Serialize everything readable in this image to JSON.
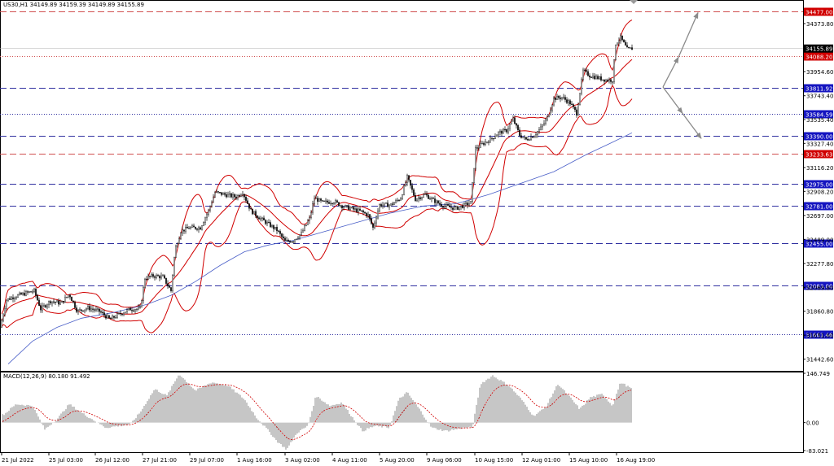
{
  "chart_data": {
    "type": "candlestick",
    "title": "US30,H1  34149.89 34159.39 34149.89 34155.89",
    "current_price": 34155.89,
    "y_ticks": [
      "34373.80",
      "34164.20",
      "33954.60",
      "33743.40",
      "33535.40",
      "33327.40",
      "33116.20",
      "32908.20",
      "32697.00",
      "32489.00",
      "32277.80",
      "32069.80",
      "31860.80",
      "31651.60",
      "31442.60"
    ],
    "x_ticks": [
      "21 Jul 2022",
      "25 Jul 03:00",
      "26 Jul 12:00",
      "27 Jul 21:00",
      "29 Jul 07:00",
      "1 Aug 16:00",
      "3 Aug 02:00",
      "4 Aug 11:00",
      "5 Aug 20:00",
      "9 Aug 06:00",
      "10 Aug 15:00",
      "12 Aug 01:00",
      "15 Aug 10:00",
      "16 Aug 19:00"
    ],
    "price_range": [
      31340,
      34580
    ],
    "levels": [
      {
        "value": 34477.0,
        "label": "34477.00",
        "style": "dashed",
        "color": "#d05050",
        "tag": "#d00000"
      },
      {
        "value": 34088.2,
        "label": "34088.20",
        "style": "dotted",
        "color": "#d05050",
        "tag": "#d00000"
      },
      {
        "value": 33811.92,
        "label": "33811.92",
        "style": "dashed",
        "color": "#3030a0",
        "tag": "#1414c0"
      },
      {
        "value": 33584.59,
        "label": "33584.59",
        "style": "dotted",
        "color": "#3030a0",
        "tag": "#1414c0"
      },
      {
        "value": 33390.0,
        "label": "33390.00",
        "style": "dashed",
        "color": "#3030a0",
        "tag": "#1414c0"
      },
      {
        "value": 33233.63,
        "label": "33233.63",
        "style": "dashed",
        "color": "#d05050",
        "tag": "#d00000"
      },
      {
        "value": 32975.0,
        "label": "32975.00",
        "style": "dashed",
        "color": "#3030a0",
        "tag": "#1414c0"
      },
      {
        "value": 32781.0,
        "label": "32781.00",
        "style": "dashed",
        "color": "#3030a0",
        "tag": "#1414c0"
      },
      {
        "value": 32455.0,
        "label": "32455.00",
        "style": "dashed",
        "color": "#3030a0",
        "tag": "#1414c0"
      },
      {
        "value": 32083.0,
        "label": "32083.00",
        "style": "dashed",
        "color": "#3030a0",
        "tag": "#1414c0"
      },
      {
        "value": 31661.46,
        "label": "31661.46",
        "style": "dotted",
        "color": "#3030a0",
        "tag": "#1414c0"
      }
    ],
    "price_path": [
      [
        0,
        31720
      ],
      [
        8,
        31960
      ],
      [
        18,
        31990
      ],
      [
        28,
        32010
      ],
      [
        42,
        32040
      ],
      [
        50,
        31880
      ],
      [
        62,
        31950
      ],
      [
        75,
        31930
      ],
      [
        85,
        32010
      ],
      [
        95,
        31860
      ],
      [
        108,
        31890
      ],
      [
        122,
        31860
      ],
      [
        135,
        31790
      ],
      [
        148,
        31840
      ],
      [
        160,
        31880
      ],
      [
        172,
        31880
      ],
      [
        178,
        32150
      ],
      [
        188,
        32170
      ],
      [
        200,
        32160
      ],
      [
        210,
        32040
      ],
      [
        215,
        32400
      ],
      [
        222,
        32560
      ],
      [
        232,
        32590
      ],
      [
        246,
        32590
      ],
      [
        256,
        32740
      ],
      [
        264,
        32900
      ],
      [
        276,
        32880
      ],
      [
        290,
        32860
      ],
      [
        298,
        32900
      ],
      [
        308,
        32740
      ],
      [
        318,
        32680
      ],
      [
        330,
        32620
      ],
      [
        340,
        32570
      ],
      [
        350,
        32470
      ],
      [
        360,
        32480
      ],
      [
        370,
        32540
      ],
      [
        380,
        32670
      ],
      [
        386,
        32850
      ],
      [
        396,
        32810
      ],
      [
        410,
        32820
      ],
      [
        420,
        32780
      ],
      [
        430,
        32760
      ],
      [
        444,
        32730
      ],
      [
        452,
        32700
      ],
      [
        458,
        32590
      ],
      [
        466,
        32790
      ],
      [
        480,
        32790
      ],
      [
        492,
        32850
      ],
      [
        500,
        33030
      ],
      [
        510,
        32840
      ],
      [
        522,
        32880
      ],
      [
        532,
        32830
      ],
      [
        542,
        32790
      ],
      [
        552,
        32770
      ],
      [
        560,
        32760
      ],
      [
        568,
        32780
      ],
      [
        578,
        32810
      ],
      [
        584,
        33280
      ],
      [
        594,
        33330
      ],
      [
        602,
        33360
      ],
      [
        612,
        33420
      ],
      [
        622,
        33440
      ],
      [
        630,
        33540
      ],
      [
        638,
        33400
      ],
      [
        646,
        33360
      ],
      [
        656,
        33400
      ],
      [
        664,
        33460
      ],
      [
        672,
        33550
      ],
      [
        680,
        33720
      ],
      [
        690,
        33730
      ],
      [
        700,
        33680
      ],
      [
        708,
        33590
      ],
      [
        716,
        33960
      ],
      [
        724,
        33920
      ],
      [
        734,
        33900
      ],
      [
        744,
        33880
      ],
      [
        752,
        33880
      ],
      [
        756,
        34200
      ],
      [
        762,
        34250
      ],
      [
        770,
        34150
      ],
      [
        776,
        34156
      ]
    ],
    "ma_points": [
      [
        10,
        31400
      ],
      [
        40,
        31600
      ],
      [
        70,
        31720
      ],
      [
        100,
        31800
      ],
      [
        140,
        31850
      ],
      [
        180,
        31920
      ],
      [
        210,
        32000
      ],
      [
        240,
        32120
      ],
      [
        270,
        32260
      ],
      [
        300,
        32380
      ],
      [
        330,
        32440
      ],
      [
        360,
        32480
      ],
      [
        400,
        32560
      ],
      [
        440,
        32640
      ],
      [
        480,
        32720
      ],
      [
        520,
        32780
      ],
      [
        560,
        32800
      ],
      [
        600,
        32880
      ],
      [
        640,
        32980
      ],
      [
        680,
        33080
      ],
      [
        720,
        33230
      ],
      [
        750,
        33330
      ],
      [
        776,
        33420
      ]
    ],
    "arrows": [
      {
        "from": [
          814,
          33820
        ],
        "to": [
          833,
          34080
        ]
      },
      {
        "from": [
          833,
          34080
        ],
        "to": [
          857,
          34470
        ]
      },
      {
        "from": [
          814,
          33820
        ],
        "to": [
          838,
          33590
        ]
      },
      {
        "from": [
          838,
          33590
        ],
        "to": [
          861,
          33370
        ]
      }
    ],
    "macd": {
      "label": "MACD(12,26,9) 80.180 91.492",
      "ticks": [
        "146.749",
        "0.00",
        "-83.021"
      ],
      "range": [
        -83.021,
        146.749
      ],
      "hist_key": [
        [
          5,
          25
        ],
        [
          20,
          55
        ],
        [
          40,
          50
        ],
        [
          55,
          -20
        ],
        [
          70,
          10
        ],
        [
          85,
          55
        ],
        [
          100,
          30
        ],
        [
          130,
          -15
        ],
        [
          160,
          -5
        ],
        [
          172,
          30
        ],
        [
          190,
          100
        ],
        [
          205,
          80
        ],
        [
          220,
          145
        ],
        [
          240,
          95
        ],
        [
          260,
          120
        ],
        [
          280,
          110
        ],
        [
          300,
          70
        ],
        [
          315,
          15
        ],
        [
          330,
          -25
        ],
        [
          340,
          -55
        ],
        [
          352,
          -80
        ],
        [
          365,
          -30
        ],
        [
          378,
          -10
        ],
        [
          388,
          80
        ],
        [
          405,
          50
        ],
        [
          420,
          60
        ],
        [
          430,
          25
        ],
        [
          445,
          -25
        ],
        [
          460,
          -10
        ],
        [
          478,
          -15
        ],
        [
          490,
          70
        ],
        [
          500,
          90
        ],
        [
          515,
          40
        ],
        [
          530,
          -15
        ],
        [
          548,
          -25
        ],
        [
          570,
          -15
        ],
        [
          580,
          -15
        ],
        [
          590,
          115
        ],
        [
          605,
          140
        ],
        [
          625,
          110
        ],
        [
          640,
          70
        ],
        [
          655,
          20
        ],
        [
          670,
          45
        ],
        [
          685,
          115
        ],
        [
          700,
          75
        ],
        [
          712,
          40
        ],
        [
          725,
          75
        ],
        [
          740,
          85
        ],
        [
          752,
          50
        ],
        [
          762,
          120
        ],
        [
          776,
          100
        ]
      ]
    }
  }
}
